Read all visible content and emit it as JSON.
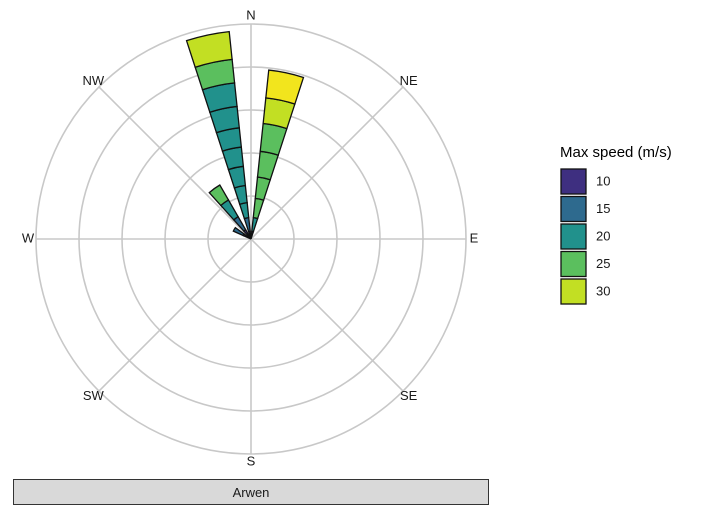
{
  "chart_data": {
    "type": "windrose",
    "directions": [
      "N",
      "NE",
      "E",
      "SE",
      "S",
      "SW",
      "W",
      "NW"
    ],
    "legend": {
      "title": "Max speed (m/s)",
      "items": [
        {
          "label": "10",
          "color": "#3e2f80"
        },
        {
          "label": "15",
          "color": "#2e6a8e"
        },
        {
          "label": "20",
          "color": "#21918c"
        },
        {
          "label": "25",
          "color": "#5bbf5e"
        },
        {
          "label": "30",
          "color": "#c2df23"
        }
      ],
      "top_color": "#f2e51d"
    },
    "rings": 5,
    "max_radius_value": 5,
    "sectors": [
      {
        "center_deg": -12,
        "width_deg": 12,
        "segments": [
          {
            "from": 0,
            "to": 0.18,
            "color": "#3e2f80"
          },
          {
            "from": 0.18,
            "to": 0.5,
            "color": "#2e6a8e"
          },
          {
            "from": 0.5,
            "to": 0.85,
            "color": "#21918c"
          },
          {
            "from": 0.85,
            "to": 1.25,
            "color": "#21918c"
          },
          {
            "from": 1.25,
            "to": 1.7,
            "color": "#21918c"
          },
          {
            "from": 1.7,
            "to": 2.15,
            "color": "#21918c"
          },
          {
            "from": 2.15,
            "to": 2.6,
            "color": "#21918c"
          },
          {
            "from": 2.6,
            "to": 3.1,
            "color": "#21918c"
          },
          {
            "from": 3.1,
            "to": 3.65,
            "color": "#21918c"
          },
          {
            "from": 3.65,
            "to": 4.2,
            "color": "#5bbf5e"
          },
          {
            "from": 4.2,
            "to": 4.85,
            "color": "#c2df23"
          }
        ]
      },
      {
        "center_deg": 12,
        "width_deg": 12,
        "segments": [
          {
            "from": 0,
            "to": 0.18,
            "color": "#3e2f80"
          },
          {
            "from": 0.18,
            "to": 0.5,
            "color": "#21918c"
          },
          {
            "from": 0.5,
            "to": 0.95,
            "color": "#5bbf5e"
          },
          {
            "from": 0.95,
            "to": 1.45,
            "color": "#5bbf5e"
          },
          {
            "from": 1.45,
            "to": 2.05,
            "color": "#5bbf5e"
          },
          {
            "from": 2.05,
            "to": 2.7,
            "color": "#5bbf5e"
          },
          {
            "from": 2.7,
            "to": 3.3,
            "color": "#c2df23"
          },
          {
            "from": 3.3,
            "to": 3.95,
            "color": "#f2e51d"
          }
        ]
      },
      {
        "center_deg": -36,
        "width_deg": 12,
        "segments": [
          {
            "from": 0,
            "to": 0.25,
            "color": "#3e2f80"
          },
          {
            "from": 0.25,
            "to": 0.6,
            "color": "#2e6a8e"
          },
          {
            "from": 0.6,
            "to": 1.05,
            "color": "#21918c"
          },
          {
            "from": 1.05,
            "to": 1.45,
            "color": "#5bbf5e"
          }
        ]
      },
      {
        "center_deg": -60,
        "width_deg": 12,
        "segments": [
          {
            "from": 0,
            "to": 0.2,
            "color": "#3e2f80"
          },
          {
            "from": 0.2,
            "to": 0.45,
            "color": "#2e6a8e"
          }
        ]
      }
    ]
  },
  "panel": {
    "strip_label": "Arwen"
  }
}
